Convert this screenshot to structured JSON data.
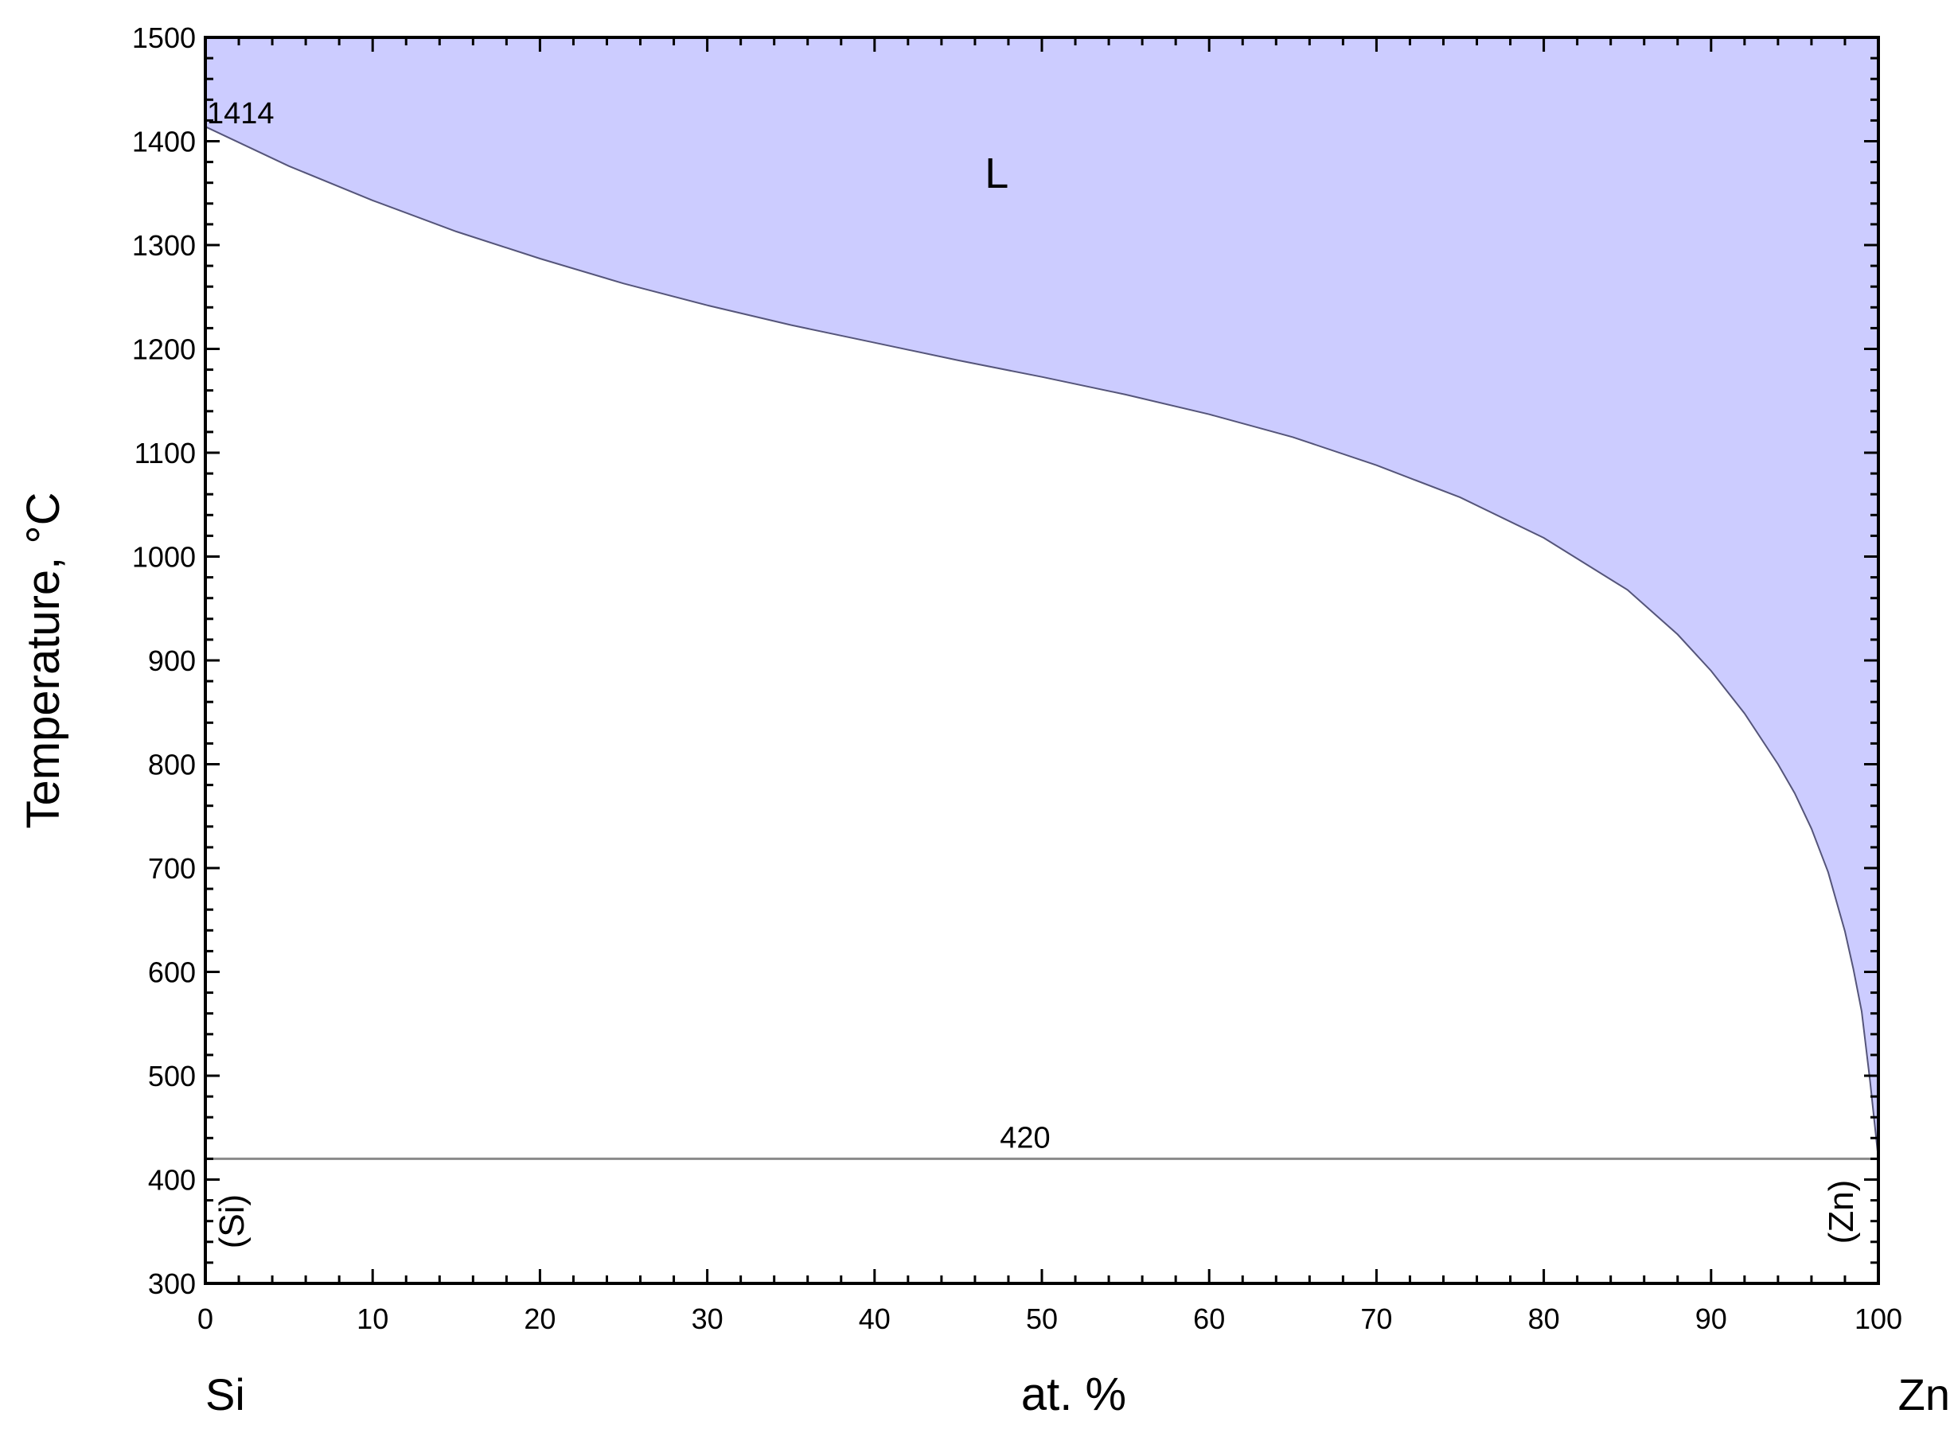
{
  "chart_data": {
    "type": "area",
    "title": "",
    "xlabel": "at. %",
    "ylabel": "Temperature, °C",
    "xlim": [
      0,
      100
    ],
    "ylim": [
      300,
      1500
    ],
    "grid": false,
    "x_ticks": [
      0,
      10,
      20,
      30,
      40,
      50,
      60,
      70,
      80,
      90,
      100
    ],
    "y_ticks": [
      300,
      400,
      500,
      600,
      700,
      800,
      900,
      1000,
      1100,
      1200,
      1300,
      1400,
      1500
    ],
    "x_end_labels": {
      "left": "Si",
      "right": "Zn"
    },
    "liquid_region": {
      "label": "L",
      "color": "#ccccff",
      "liquidus": [
        [
          0,
          1414
        ],
        [
          5,
          1376
        ],
        [
          10,
          1343
        ],
        [
          15,
          1313
        ],
        [
          20,
          1287
        ],
        [
          25,
          1263
        ],
        [
          30,
          1242
        ],
        [
          35,
          1223
        ],
        [
          40,
          1206
        ],
        [
          45,
          1189
        ],
        [
          50,
          1173
        ],
        [
          55,
          1156
        ],
        [
          60,
          1137
        ],
        [
          65,
          1115
        ],
        [
          70,
          1088
        ],
        [
          75,
          1057
        ],
        [
          80,
          1018
        ],
        [
          85,
          968
        ],
        [
          88,
          925
        ],
        [
          90,
          890
        ],
        [
          92,
          849
        ],
        [
          94,
          800
        ],
        [
          95,
          772
        ],
        [
          96,
          738
        ],
        [
          97,
          696
        ],
        [
          98,
          639
        ],
        [
          98.5,
          603
        ],
        [
          99,
          562
        ],
        [
          99.5,
          495
        ],
        [
          100,
          420
        ]
      ]
    },
    "eutectic_line": {
      "temperature": 420,
      "label": "420",
      "from": 0,
      "to": 100
    },
    "annotations": [
      {
        "text": "1414",
        "x": 0,
        "y": 1414
      }
    ],
    "phase_labels": [
      {
        "text": "(Si)",
        "side": "left"
      },
      {
        "text": "(Zn)",
        "side": "right"
      }
    ]
  }
}
